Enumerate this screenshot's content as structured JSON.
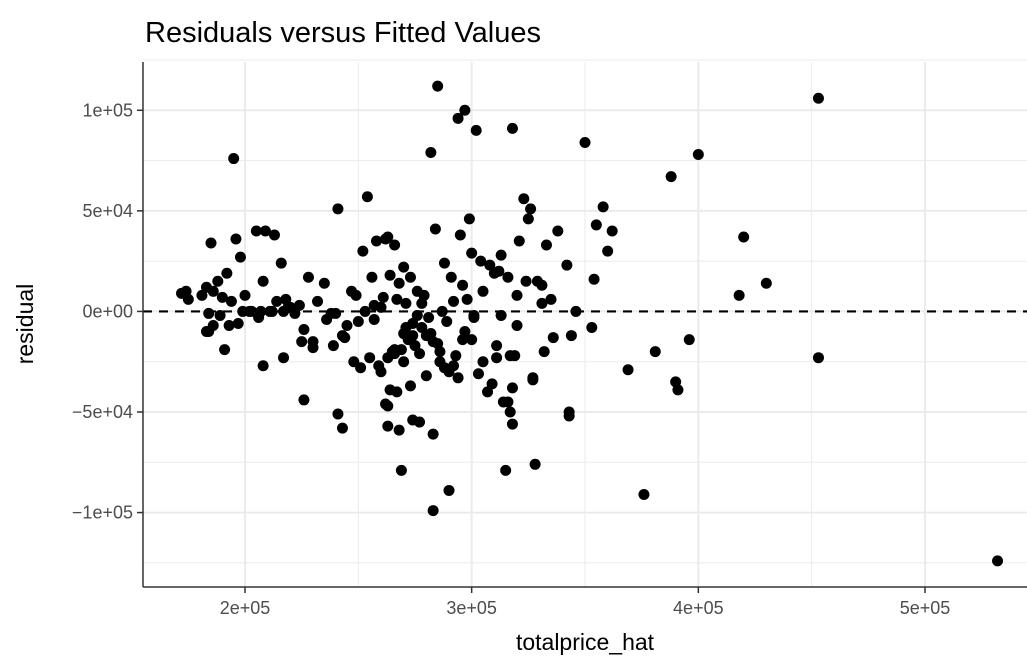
{
  "chart_data": {
    "type": "scatter",
    "title": "Residuals versus Fitted Values",
    "xlabel": "totalprice_hat",
    "ylabel": "residual",
    "xlim": [
      155000,
      545000
    ],
    "ylim": [
      -137000,
      124000
    ],
    "x_ticks": [
      200000,
      300000,
      400000,
      500000
    ],
    "x_tick_labels": [
      "2e+05",
      "3e+05",
      "4e+05",
      "5e+05"
    ],
    "y_ticks": [
      -100000,
      -50000,
      0,
      50000,
      100000
    ],
    "y_tick_labels": [
      "−1e+05",
      "−5e+04",
      "0e+00",
      "5e+04",
      "1e+05"
    ],
    "grid": true,
    "reference_line": {
      "y": 0,
      "style": "dashed",
      "color": "#000000"
    },
    "point_color": "#000000",
    "x": [
      285000,
      453000,
      297000,
      294000,
      302000,
      318000,
      350000,
      195000,
      400000,
      388000,
      282000,
      254000,
      241000,
      323000,
      326000,
      358000,
      299000,
      216000,
      263000,
      209000,
      213000,
      235000,
      205000,
      208000,
      196000,
      198000,
      192000,
      185000,
      188000,
      183000,
      181000,
      175000,
      172000,
      174000,
      186000,
      190000,
      194000,
      200000,
      203000,
      218000,
      224000,
      228000,
      232000,
      214000,
      211000,
      220000,
      238000,
      247000,
      249000,
      252000,
      258000,
      262000,
      266000,
      270000,
      273000,
      256000,
      260000,
      268000,
      276000,
      278000,
      284000,
      288000,
      291000,
      295000,
      300000,
      304000,
      308000,
      312000,
      316000,
      320000,
      324000,
      329000,
      333000,
      338000,
      342000,
      355000,
      360000,
      362000,
      354000,
      346000,
      335000,
      331000,
      325000,
      321000,
      313000,
      310000,
      305000,
      298000,
      296000,
      292000,
      287000,
      281000,
      279000,
      274000,
      271000,
      267000,
      264000,
      261000,
      257000,
      253000,
      250000,
      245000,
      243000,
      240000,
      236000,
      230000,
      226000,
      222000,
      219000,
      212000,
      207000,
      202000,
      199000,
      193000,
      189000,
      184000,
      183000,
      191000,
      197000,
      206000,
      217000,
      225000,
      230000,
      239000,
      244000,
      248000,
      255000,
      259000,
      263000,
      265000,
      269000,
      272000,
      275000,
      277000,
      280000,
      283000,
      286000,
      290000,
      293000,
      297000,
      301000,
      303000,
      307000,
      311000,
      314000,
      317000,
      319000,
      327000,
      332000,
      343000,
      344000,
      353000,
      369000,
      381000,
      390000,
      391000,
      396000,
      418000,
      420000,
      430000,
      453000,
      532000,
      376000,
      343000,
      328000,
      315000,
      318000,
      316000,
      317000,
      290000,
      283000,
      283000,
      274000,
      263000,
      262000,
      269000,
      268000,
      277000,
      288000,
      278000,
      263000,
      267000,
      273000,
      280000,
      286000,
      292000,
      296000,
      301000,
      309000,
      318000,
      327000,
      270000,
      274000,
      266000,
      243000,
      241000,
      226000,
      217000,
      208000,
      186000,
      184000,
      265000,
      271000,
      300000,
      305000,
      311000,
      313000,
      320000,
      331000,
      336000,
      251000,
      260000,
      257000,
      285000,
      289000,
      294000,
      272000,
      276000,
      282000,
      266000,
      270000,
      264000
    ],
    "y": [
      112000,
      106000,
      100000,
      96000,
      90000,
      91000,
      84000,
      76000,
      78000,
      67000,
      79000,
      57000,
      51000,
      56000,
      51000,
      52000,
      46000,
      24000,
      37000,
      40000,
      38000,
      14000,
      40000,
      15000,
      36000,
      27000,
      19000,
      34000,
      15000,
      12000,
      8000,
      6000,
      9000,
      10000,
      10000,
      7000,
      5000,
      8000,
      0,
      6000,
      3000,
      17000,
      5000,
      5000,
      0,
      2000,
      -1000,
      10000,
      8000,
      30000,
      35000,
      36000,
      33000,
      22000,
      17000,
      17000,
      2000,
      14000,
      10000,
      4000,
      41000,
      24000,
      17000,
      38000,
      29000,
      25000,
      23000,
      20000,
      17000,
      8000,
      15000,
      15000,
      33000,
      40000,
      23000,
      43000,
      30000,
      40000,
      16000,
      0,
      6000,
      13000,
      46000,
      35000,
      28000,
      19000,
      10000,
      6000,
      13000,
      5000,
      0,
      -3000,
      8000,
      -6000,
      4000,
      6000,
      18000,
      7000,
      3000,
      0,
      -5000,
      -7000,
      -12000,
      -1000,
      -4000,
      -15000,
      -9000,
      -1000,
      2000,
      0,
      0,
      0,
      0,
      -7000,
      -2000,
      -10000,
      -10000,
      -19000,
      -6000,
      -3000,
      0,
      -15000,
      -18000,
      -17000,
      -13000,
      -25000,
      -23000,
      -27000,
      -23000,
      -21000,
      -19000,
      -13000,
      -17000,
      -21000,
      -12000,
      -15000,
      -25000,
      -30000,
      -22000,
      -10000,
      -3000,
      -31000,
      -40000,
      -23000,
      -45000,
      -22000,
      -22000,
      -34000,
      -20000,
      -52000,
      -12000,
      -8000,
      -29000,
      -20000,
      -35000,
      -39000,
      -14000,
      8000,
      37000,
      14000,
      -23000,
      -124000,
      -91000,
      -50000,
      -76000,
      -79000,
      -56000,
      -45000,
      -50000,
      -89000,
      -99000,
      -61000,
      -54000,
      -57000,
      -46000,
      -79000,
      -59000,
      -55000,
      -28000,
      -8000,
      -47000,
      -40000,
      -37000,
      -32000,
      -20000,
      -27000,
      -14000,
      -2000,
      -36000,
      -38000,
      -33000,
      -11000,
      -12000,
      -21000,
      -58000,
      -51000,
      -44000,
      -23000,
      -27000,
      -7000,
      -1000,
      -20000,
      -8000,
      -14000,
      -25000,
      -17000,
      -2000,
      -7000,
      4000,
      -13000,
      -28000,
      -30000,
      -4000,
      -16000,
      -5000,
      -33000,
      -14000,
      -2000,
      -11000,
      -19000,
      -25000,
      -39000
    ]
  }
}
